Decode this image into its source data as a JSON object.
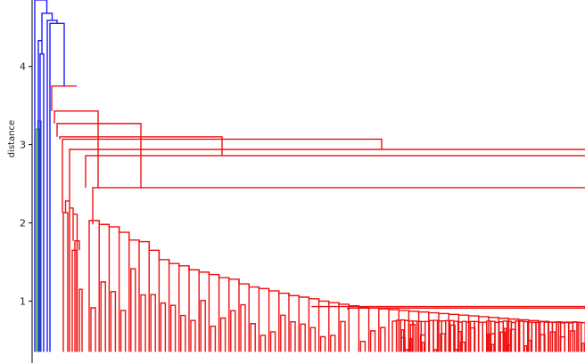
{
  "chart_data": {
    "type": "dendrogram",
    "ylabel": "distance",
    "ylim": [
      0.35,
      4.85
    ],
    "yticks": [
      1,
      2,
      3,
      4
    ],
    "ytick_labels": [
      "1",
      "2",
      "3",
      "4"
    ],
    "grid": false,
    "colors": {
      "blue": "#1a1aff",
      "green": "#2ca02c",
      "red": "#ee1111"
    },
    "clusters": [
      {
        "name": "blue",
        "color": "#1a1aff"
      },
      {
        "name": "green",
        "color": "#2ca02c"
      },
      {
        "name": "red",
        "color": "#ee1111"
      }
    ],
    "top_merge_heights": [
      4.68,
      4.59,
      4.55,
      4.33,
      4.16,
      3.75,
      3.43,
      3.27,
      3.1,
      3.07,
      2.94,
      2.86,
      2.45
    ],
    "shoulder_heights": [
      2.28,
      2.19,
      2.11,
      2.03,
      1.98,
      1.95,
      1.88,
      1.78,
      1.76,
      1.65,
      1.53,
      1.48,
      1.45,
      1.4,
      1.37,
      1.34,
      1.3,
      1.28,
      1.22,
      1.18,
      1.16,
      1.13,
      1.1,
      1.07,
      1.05,
      1.03,
      1.0,
      0.98,
      0.96,
      0.94,
      0.92,
      0.91,
      0.9,
      0.89,
      0.88,
      0.87,
      0.86,
      0.85,
      0.84,
      0.83,
      0.82,
      0.81,
      0.8,
      0.79,
      0.78,
      0.77,
      0.76,
      0.75,
      0.74,
      0.73
    ]
  }
}
